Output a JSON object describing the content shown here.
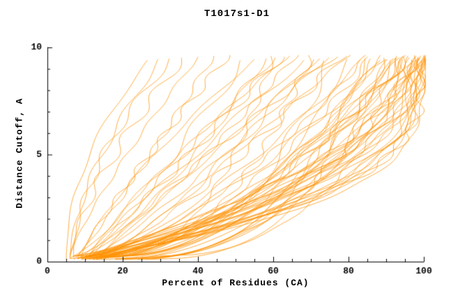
{
  "chart_data": {
    "type": "line",
    "title": "T1017s1-D1",
    "xlabel": "Percent of Residues (CA)",
    "ylabel": "Distance Cutoff, A",
    "xlim": [
      0,
      100
    ],
    "ylim": [
      0,
      10
    ],
    "xticks": [
      0,
      20,
      40,
      60,
      80,
      100
    ],
    "xminor_step": 5,
    "yticks": [
      0,
      5,
      10
    ],
    "yminor_step": 1,
    "grid": false,
    "legend": "none",
    "line_color": "#ff9100",
    "axis_color": "#000000",
    "series_description": "Each curve: [percent_at_cutoff0, percent_at_cutoff10, shape] (shape>0 ease-in power, shape<0 ease-out power)",
    "curves": [
      [
        5,
        27,
        2.0
      ],
      [
        6,
        30,
        1.6
      ],
      [
        7,
        33,
        1.8
      ],
      [
        6,
        36,
        1.4
      ],
      [
        6,
        40,
        1.2
      ],
      [
        7,
        44,
        0.9
      ],
      [
        8,
        48,
        1.1
      ],
      [
        6,
        52,
        0.8
      ],
      [
        9,
        55,
        1.3
      ],
      [
        7,
        58,
        0.7
      ],
      [
        10,
        60,
        1.0
      ],
      [
        8,
        62,
        0.9
      ],
      [
        11,
        64,
        1.2
      ],
      [
        9,
        66,
        0.8
      ],
      [
        12,
        68,
        1.1
      ],
      [
        10,
        70,
        0.7
      ],
      [
        13,
        72,
        1.0
      ],
      [
        11,
        74,
        0.85
      ],
      [
        14,
        76,
        1.15
      ],
      [
        12,
        78,
        0.75
      ],
      [
        15,
        80,
        0.95
      ],
      [
        8,
        100,
        -2.5
      ],
      [
        9,
        99,
        -3.0
      ],
      [
        10,
        100,
        -2.0
      ],
      [
        7,
        98,
        -3.5
      ],
      [
        11,
        100,
        -2.8
      ],
      [
        9,
        97,
        -2.2
      ],
      [
        12,
        100,
        -3.2
      ],
      [
        10,
        99,
        -1.8
      ],
      [
        8,
        96,
        -2.6
      ],
      [
        13,
        100,
        -2.1
      ],
      [
        11,
        98,
        -2.9
      ],
      [
        9,
        100,
        -3.6
      ],
      [
        14,
        99,
        -2.4
      ],
      [
        10,
        95,
        -2.0
      ],
      [
        12,
        97,
        -3.0
      ],
      [
        8,
        94,
        -2.3
      ],
      [
        15,
        100,
        -1.9
      ],
      [
        11,
        96,
        -2.7
      ],
      [
        13,
        99,
        -3.3
      ],
      [
        9,
        93,
        -2.5
      ],
      [
        6,
        85,
        0.6
      ],
      [
        8,
        88,
        0.5
      ],
      [
        10,
        90,
        0.7
      ],
      [
        7,
        92,
        0.45
      ],
      [
        12,
        94,
        0.65
      ],
      [
        9,
        86,
        0.55
      ],
      [
        14,
        96,
        0.6
      ],
      [
        11,
        89,
        0.5
      ],
      [
        16,
        98,
        0.7
      ],
      [
        13,
        91,
        0.4
      ],
      [
        18,
        100,
        0.55
      ],
      [
        15,
        93,
        0.6
      ],
      [
        17,
        95,
        0.5
      ],
      [
        19,
        97,
        0.65
      ],
      [
        20,
        99,
        0.45
      ],
      [
        22,
        100,
        0.6
      ],
      [
        12,
        84,
        0.75
      ],
      [
        16,
        87,
        0.5
      ],
      [
        21,
        94,
        0.55
      ],
      [
        24,
        98,
        0.5
      ],
      [
        10,
        60,
        0.35
      ],
      [
        12,
        70,
        0.4
      ],
      [
        14,
        75,
        0.38
      ],
      [
        16,
        80,
        0.42
      ],
      [
        18,
        85,
        0.36
      ],
      [
        20,
        90,
        0.4
      ],
      [
        25,
        95,
        0.45
      ],
      [
        28,
        100,
        0.5
      ],
      [
        30,
        100,
        0.42
      ],
      [
        26,
        92,
        0.38
      ]
    ]
  }
}
